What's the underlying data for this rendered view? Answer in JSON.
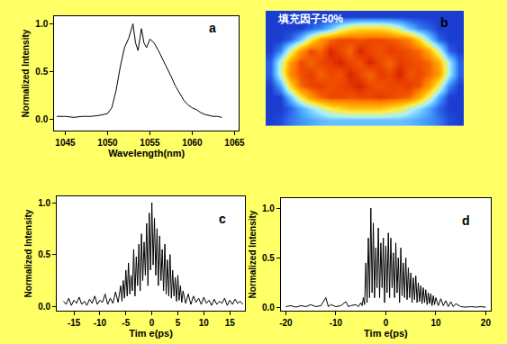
{
  "chart_data": [
    {
      "type": "line",
      "annotations": [
        "a"
      ],
      "x_label": "Wavelength(nm)",
      "y_label": "Normalized Intensity",
      "color": "#000000",
      "grid": false,
      "x": [
        1044,
        1045,
        1046,
        1047,
        1048,
        1049,
        1050,
        1050.5,
        1051,
        1051.5,
        1052,
        1052.5,
        1053,
        1053.3,
        1053.6,
        1054,
        1054.3,
        1054.6,
        1055,
        1055.5,
        1056,
        1056.5,
        1057,
        1057.5,
        1058,
        1058.5,
        1059,
        1059.5,
        1060,
        1060.5,
        1061,
        1061.5,
        1062,
        1062.5,
        1063,
        1063.5
      ],
      "values": [
        0.03,
        0.03,
        0.02,
        0.03,
        0.03,
        0.04,
        0.06,
        0.12,
        0.3,
        0.55,
        0.75,
        0.85,
        1.0,
        0.8,
        0.72,
        0.95,
        0.8,
        0.75,
        0.84,
        0.8,
        0.72,
        0.63,
        0.55,
        0.45,
        0.35,
        0.27,
        0.2,
        0.15,
        0.12,
        0.1,
        0.07,
        0.05,
        0.04,
        0.03,
        0.03,
        0.02
      ],
      "xlim": [
        1043.7,
        1065.5
      ],
      "xticks": [
        1045,
        1050,
        1055,
        1060,
        1065
      ],
      "ylim": [
        -0.12,
        1.08
      ],
      "yticks": [
        {
          "value": 0,
          "label": "0.0"
        },
        {
          "value": 0.5,
          "label": "0.5"
        },
        {
          "value": 1,
          "label": "1.0"
        }
      ]
    },
    {
      "type": "heatmap",
      "annotations": [
        "b",
        "填充因子50%"
      ],
      "zlim": [
        0,
        1
      ],
      "cells": [
        [
          0.1,
          0.1,
          0.1,
          0.1,
          0.1,
          0.1,
          0.1,
          0.1,
          0.1,
          0.1,
          0.1,
          0.1,
          0.1,
          0.1,
          0.1,
          0.1,
          0.1,
          0.1,
          0.1,
          0.1
        ],
        [
          0.1,
          0.1,
          0.1,
          0.1,
          0.15,
          0.2,
          0.3,
          0.45,
          0.55,
          0.6,
          0.6,
          0.6,
          0.55,
          0.45,
          0.3,
          0.2,
          0.15,
          0.1,
          0.1,
          0.1
        ],
        [
          0.1,
          0.1,
          0.15,
          0.3,
          0.55,
          0.75,
          0.85,
          0.9,
          0.9,
          0.88,
          0.9,
          0.9,
          0.88,
          0.85,
          0.8,
          0.6,
          0.35,
          0.15,
          0.1,
          0.1
        ],
        [
          0.1,
          0.2,
          0.5,
          0.75,
          0.9,
          0.85,
          0.95,
          0.9,
          0.85,
          0.95,
          0.9,
          0.88,
          0.92,
          0.9,
          0.88,
          0.85,
          0.7,
          0.45,
          0.15,
          0.1
        ],
        [
          0.15,
          0.45,
          0.75,
          0.9,
          0.85,
          0.9,
          0.92,
          0.95,
          0.9,
          0.88,
          0.95,
          0.9,
          0.85,
          0.92,
          0.9,
          0.88,
          0.85,
          0.7,
          0.4,
          0.15
        ],
        [
          0.15,
          0.45,
          0.8,
          0.88,
          0.92,
          0.85,
          0.9,
          0.88,
          0.95,
          0.9,
          0.85,
          0.92,
          0.9,
          0.95,
          0.88,
          0.9,
          0.85,
          0.75,
          0.4,
          0.15
        ],
        [
          0.1,
          0.25,
          0.6,
          0.85,
          0.9,
          0.92,
          0.88,
          0.9,
          0.92,
          0.95,
          0.9,
          0.88,
          0.9,
          0.9,
          0.92,
          0.88,
          0.75,
          0.5,
          0.2,
          0.1
        ],
        [
          0.1,
          0.1,
          0.3,
          0.55,
          0.75,
          0.85,
          0.9,
          0.9,
          0.88,
          0.9,
          0.9,
          0.92,
          0.9,
          0.88,
          0.85,
          0.7,
          0.5,
          0.25,
          0.1,
          0.1
        ],
        [
          0.1,
          0.1,
          0.15,
          0.25,
          0.35,
          0.45,
          0.55,
          0.6,
          0.65,
          0.65,
          0.65,
          0.65,
          0.6,
          0.55,
          0.45,
          0.35,
          0.25,
          0.15,
          0.1,
          0.1
        ],
        [
          0.1,
          0.12,
          0.18,
          0.22,
          0.25,
          0.28,
          0.3,
          0.3,
          0.3,
          0.3,
          0.3,
          0.3,
          0.3,
          0.3,
          0.28,
          0.25,
          0.22,
          0.18,
          0.12,
          0.1
        ]
      ],
      "tick_labels": false
    },
    {
      "type": "line",
      "annotations": [
        "c"
      ],
      "x_label": "Tim e(ps)",
      "y_label": "Normalized Intensity",
      "color": "#000000",
      "grid": false,
      "x": [
        -17,
        -16.5,
        -16,
        -15.5,
        -15,
        -14.5,
        -14,
        -13.5,
        -13,
        -12.5,
        -12,
        -11.5,
        -11,
        -10.5,
        -10,
        -9.5,
        -9,
        -8.5,
        -8,
        -7.5,
        -7,
        -6.5,
        -6,
        -5.75,
        -5.5,
        -5.25,
        -5,
        -4.75,
        -4.5,
        -4.25,
        -4,
        -3.75,
        -3.5,
        -3.25,
        -3,
        -2.75,
        -2.5,
        -2.25,
        -2,
        -1.75,
        -1.5,
        -1.25,
        -1,
        -0.75,
        -0.5,
        -0.25,
        0,
        0.25,
        0.5,
        0.75,
        1,
        1.25,
        1.5,
        1.75,
        2,
        2.25,
        2.5,
        2.75,
        3,
        3.25,
        3.5,
        3.75,
        4,
        4.25,
        4.5,
        4.75,
        5,
        5.25,
        5.5,
        5.75,
        6,
        6.5,
        7,
        7.5,
        8,
        8.5,
        9,
        9.5,
        10,
        10.5,
        11,
        11.5,
        12,
        12.5,
        13,
        13.5,
        14,
        14.5,
        15,
        15.5,
        16,
        16.5,
        17,
        17.5
      ],
      "values": [
        0.05,
        0.02,
        0.08,
        0.01,
        0.06,
        0.03,
        0.09,
        0.02,
        0.05,
        0.01,
        0.07,
        0.03,
        0.1,
        0.02,
        0.06,
        0.04,
        0.12,
        0.02,
        0.08,
        0.03,
        0.14,
        0.04,
        0.2,
        0.05,
        0.25,
        0.08,
        0.35,
        0.1,
        0.42,
        0.12,
        0.3,
        0.15,
        0.55,
        0.1,
        0.48,
        0.2,
        0.6,
        0.15,
        0.7,
        0.25,
        0.62,
        0.3,
        0.8,
        0.2,
        0.9,
        0.35,
        1.0,
        0.4,
        0.85,
        0.3,
        0.75,
        0.2,
        0.68,
        0.25,
        0.55,
        0.15,
        0.6,
        0.12,
        0.45,
        0.1,
        0.5,
        0.08,
        0.35,
        0.1,
        0.28,
        0.05,
        0.3,
        0.06,
        0.2,
        0.04,
        0.15,
        0.03,
        0.12,
        0.02,
        0.1,
        0.04,
        0.08,
        0.02,
        0.09,
        0.03,
        0.06,
        0.01,
        0.07,
        0.02,
        0.05,
        0.03,
        0.08,
        0.01,
        0.06,
        0.02,
        0.07,
        0.03,
        0.05,
        0.02
      ],
      "xlim": [
        -18.3,
        17.9
      ],
      "xticks": [
        -15,
        -10,
        -5,
        0,
        5,
        10,
        15
      ],
      "ylim": [
        -0.04,
        1.06
      ],
      "yticks": [
        {
          "value": 0,
          "label": "0.0"
        },
        {
          "value": 0.5,
          "label": "0.5"
        },
        {
          "value": 1,
          "label": "1.0"
        }
      ]
    },
    {
      "type": "line",
      "annotations": [
        "d"
      ],
      "x_label": "Tim e(ps)",
      "y_label": "Normalized Intensity",
      "color": "#000000",
      "grid": false,
      "x": [
        -20,
        -19,
        -18,
        -17,
        -16,
        -15,
        -14,
        -13,
        -12,
        -11.5,
        -11,
        -10,
        -9,
        -8,
        -7.5,
        -7,
        -6,
        -5.5,
        -5,
        -4.75,
        -4.5,
        -4.25,
        -4,
        -3.75,
        -3.5,
        -3.25,
        -3,
        -2.75,
        -2.5,
        -2.25,
        -2,
        -1.75,
        -1.5,
        -1.25,
        -1,
        -0.75,
        -0.5,
        -0.25,
        0,
        0.25,
        0.5,
        0.75,
        1,
        1.25,
        1.5,
        1.75,
        2,
        2.25,
        2.5,
        2.75,
        3,
        3.25,
        3.5,
        3.75,
        4,
        4.25,
        4.5,
        4.75,
        5,
        5.25,
        5.5,
        5.75,
        6,
        6.25,
        6.5,
        6.75,
        7,
        7.25,
        7.5,
        7.75,
        8,
        8.25,
        8.5,
        8.75,
        9,
        9.25,
        9.5,
        9.75,
        10,
        10.5,
        11,
        11.5,
        12,
        12.5,
        13,
        13.5,
        14,
        15,
        16,
        17,
        18,
        19,
        20
      ],
      "values": [
        0.01,
        0.02,
        0.005,
        0.02,
        0.01,
        0.03,
        0.01,
        0.02,
        0.1,
        0.01,
        0.03,
        0.01,
        0.02,
        0.06,
        0.01,
        0.02,
        0.03,
        0.01,
        0.05,
        0.02,
        0.1,
        0.03,
        0.45,
        0.05,
        0.7,
        0.1,
        1.0,
        0.15,
        0.85,
        0.1,
        0.6,
        0.2,
        0.8,
        0.1,
        0.65,
        0.2,
        0.7,
        0.05,
        0.62,
        0.15,
        0.75,
        0.1,
        0.7,
        0.2,
        0.55,
        0.1,
        0.65,
        0.15,
        0.5,
        0.05,
        0.6,
        0.12,
        0.45,
        0.1,
        0.5,
        0.08,
        0.4,
        0.1,
        0.35,
        0.05,
        0.3,
        0.08,
        0.32,
        0.05,
        0.25,
        0.06,
        0.22,
        0.04,
        0.2,
        0.05,
        0.18,
        0.03,
        0.15,
        0.04,
        0.14,
        0.02,
        0.12,
        0.03,
        0.1,
        0.02,
        0.09,
        0.02,
        0.07,
        0.01,
        0.06,
        0.01,
        0.04,
        0.01,
        0.005,
        0.01,
        0.005,
        0.01,
        0.005
      ],
      "xlim": [
        -21,
        21
      ],
      "xticks": [
        -20,
        -10,
        0,
        10,
        20
      ],
      "ylim": [
        -0.03,
        1.1
      ],
      "yticks": [
        {
          "value": 0,
          "label": "0.0"
        },
        {
          "value": 0.5,
          "label": "0.5"
        },
        {
          "value": 1,
          "label": "1.0"
        }
      ]
    }
  ]
}
